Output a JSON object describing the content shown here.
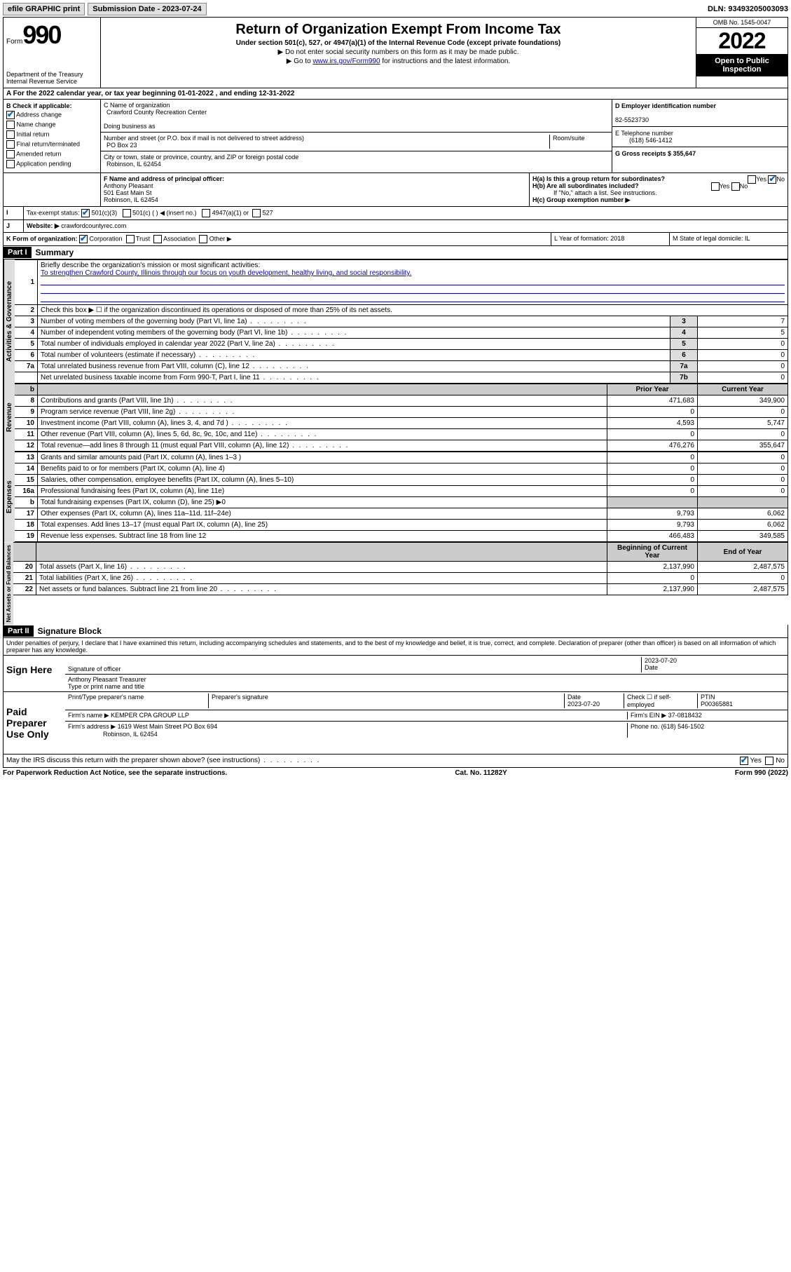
{
  "topbar": {
    "efile": "efile GRAPHIC print",
    "submission_label": "Submission Date - 2023-07-24",
    "dln_label": "DLN: 93493205003093"
  },
  "header": {
    "form_text": "Form",
    "form_num": "990",
    "dept": "Department of the Treasury",
    "irs": "Internal Revenue Service",
    "title": "Return of Organization Exempt From Income Tax",
    "subtitle": "Under section 501(c), 527, or 4947(a)(1) of the Internal Revenue Code (except private foundations)",
    "note1": "▶ Do not enter social security numbers on this form as it may be made public.",
    "note2_pre": "▶ Go to ",
    "note2_link": "www.irs.gov/Form990",
    "note2_post": " for instructions and the latest information.",
    "omb": "OMB No. 1545-0047",
    "year": "2022",
    "open": "Open to Public Inspection"
  },
  "rowA": {
    "text": "A For the 2022 calendar year, or tax year beginning 01-01-2022    , and ending 12-31-2022"
  },
  "colB": {
    "title": "B Check if applicable:",
    "items": [
      "Address change",
      "Name change",
      "Initial return",
      "Final return/terminated",
      "Amended return",
      "Application pending"
    ],
    "checked_idx": 0
  },
  "colC": {
    "name_lbl": "C Name of organization",
    "name": "Crawford County Recreation Center",
    "dba_lbl": "Doing business as",
    "addr_lbl": "Number and street (or P.O. box if mail is not delivered to street address)",
    "room_lbl": "Room/suite",
    "addr": "PO Box 23",
    "city_lbl": "City or town, state or province, country, and ZIP or foreign postal code",
    "city": "Robinson, IL  62454"
  },
  "colD": {
    "ein_lbl": "D Employer identification number",
    "ein": "82-5523730",
    "phone_lbl": "E Telephone number",
    "phone": "(618) 546-1412",
    "gross_lbl": "G Gross receipts $ 355,647"
  },
  "rowF": {
    "f_lbl": "F Name and address of principal officer:",
    "f_name": "Anthony Pleasant",
    "f_addr1": "501 East Main St",
    "f_addr2": "Robinson, IL  62454",
    "ha": "H(a)  Is this a group return for subordinates?",
    "hb": "H(b)  Are all subordinates included?",
    "hb_note": "If \"No,\" attach a list. See instructions.",
    "hc": "H(c)  Group exemption number ▶",
    "yes": "Yes",
    "no": "No"
  },
  "rowI": {
    "lbl": "Tax-exempt status:",
    "opts": [
      "501(c)(3)",
      "501(c) (  ) ◀ (insert no.)",
      "4947(a)(1) or",
      "527"
    ]
  },
  "rowJ": {
    "lbl": "Website: ▶",
    "val": "crawfordcountyrec.com"
  },
  "rowK": {
    "lbl": "K Form of organization:",
    "opts": [
      "Corporation",
      "Trust",
      "Association",
      "Other ▶"
    ],
    "L": "L Year of formation: 2018",
    "M": "M State of legal domicile: IL"
  },
  "part1": {
    "hdr": "Part I",
    "title": "Summary",
    "line1_lbl": "Briefly describe the organization's mission or most significant activities:",
    "line1_val": "To strengthen Crawford County, Illinois through our focus on youth development, healthy living, and social responsibility.",
    "line2": "Check this box ▶ ☐  if the organization discontinued its operations or disposed of more than 25% of its net assets.",
    "gov_lines": [
      {
        "n": "3",
        "d": "Number of voting members of the governing body (Part VI, line 1a)",
        "b": "3",
        "v": "7"
      },
      {
        "n": "4",
        "d": "Number of independent voting members of the governing body (Part VI, line 1b)",
        "b": "4",
        "v": "5"
      },
      {
        "n": "5",
        "d": "Total number of individuals employed in calendar year 2022 (Part V, line 2a)",
        "b": "5",
        "v": "0"
      },
      {
        "n": "6",
        "d": "Total number of volunteers (estimate if necessary)",
        "b": "6",
        "v": "0"
      },
      {
        "n": "7a",
        "d": "Total unrelated business revenue from Part VIII, column (C), line 12",
        "b": "7a",
        "v": "0"
      },
      {
        "n": "",
        "d": "Net unrelated business taxable income from Form 990-T, Part I, line 11",
        "b": "7b",
        "v": "0"
      }
    ],
    "prior": "Prior Year",
    "current": "Current Year",
    "rev_lines": [
      {
        "n": "8",
        "d": "Contributions and grants (Part VIII, line 1h)",
        "p": "471,683",
        "c": "349,900"
      },
      {
        "n": "9",
        "d": "Program service revenue (Part VIII, line 2g)",
        "p": "0",
        "c": "0"
      },
      {
        "n": "10",
        "d": "Investment income (Part VIII, column (A), lines 3, 4, and 7d )",
        "p": "4,593",
        "c": "5,747"
      },
      {
        "n": "11",
        "d": "Other revenue (Part VIII, column (A), lines 5, 6d, 8c, 9c, 10c, and 11e)",
        "p": "0",
        "c": "0"
      },
      {
        "n": "12",
        "d": "Total revenue—add lines 8 through 11 (must equal Part VIII, column (A), line 12)",
        "p": "476,276",
        "c": "355,647"
      }
    ],
    "exp_lines": [
      {
        "n": "13",
        "d": "Grants and similar amounts paid (Part IX, column (A), lines 1–3 )",
        "p": "0",
        "c": "0"
      },
      {
        "n": "14",
        "d": "Benefits paid to or for members (Part IX, column (A), line 4)",
        "p": "0",
        "c": "0"
      },
      {
        "n": "15",
        "d": "Salaries, other compensation, employee benefits (Part IX, column (A), lines 5–10)",
        "p": "0",
        "c": "0"
      },
      {
        "n": "16a",
        "d": "Professional fundraising fees (Part IX, column (A), line 11e)",
        "p": "0",
        "c": "0"
      },
      {
        "n": "b",
        "d": "Total fundraising expenses (Part IX, column (D), line 25) ▶0",
        "p": "",
        "c": "",
        "gray": true
      },
      {
        "n": "17",
        "d": "Other expenses (Part IX, column (A), lines 11a–11d, 11f–24e)",
        "p": "9,793",
        "c": "6,062"
      },
      {
        "n": "18",
        "d": "Total expenses. Add lines 13–17 (must equal Part IX, column (A), line 25)",
        "p": "9,793",
        "c": "6,062"
      },
      {
        "n": "19",
        "d": "Revenue less expenses. Subtract line 18 from line 12",
        "p": "466,483",
        "c": "349,585"
      }
    ],
    "begin": "Beginning of Current Year",
    "end": "End of Year",
    "net_lines": [
      {
        "n": "20",
        "d": "Total assets (Part X, line 16)",
        "p": "2,137,990",
        "c": "2,487,575"
      },
      {
        "n": "21",
        "d": "Total liabilities (Part X, line 26)",
        "p": "0",
        "c": "0"
      },
      {
        "n": "22",
        "d": "Net assets or fund balances. Subtract line 21 from line 20",
        "p": "2,137,990",
        "c": "2,487,575"
      }
    ],
    "tabs": {
      "gov": "Activities & Governance",
      "rev": "Revenue",
      "exp": "Expenses",
      "net": "Net Assets or Fund Balances"
    }
  },
  "part2": {
    "hdr": "Part II",
    "title": "Signature Block",
    "penalty": "Under penalties of perjury, I declare that I have examined this return, including accompanying schedules and statements, and to the best of my knowledge and belief, it is true, correct, and complete. Declaration of preparer (other than officer) is based on all information of which preparer has any knowledge.",
    "sign": "Sign Here",
    "sig_officer": "Signature of officer",
    "date": "Date",
    "date_val": "2023-07-20",
    "name_title": "Anthony Pleasant Treasurer",
    "name_title_lbl": "Type or print name and title",
    "paid": "Paid Preparer Use Only",
    "prep_name_lbl": "Print/Type preparer's name",
    "prep_sig_lbl": "Preparer's signature",
    "prep_date": "2023-07-20",
    "check_self": "Check ☐ if self-employed",
    "ptin_lbl": "PTIN",
    "ptin": "P00365881",
    "firm_name_lbl": "Firm's name   ▶",
    "firm_name": "KEMPER CPA GROUP LLP",
    "firm_ein_lbl": "Firm's EIN ▶",
    "firm_ein": "37-0818432",
    "firm_addr_lbl": "Firm's address ▶",
    "firm_addr": "1619 West Main Street PO Box 694",
    "firm_city": "Robinson, IL  62454",
    "firm_phone_lbl": "Phone no.",
    "firm_phone": "(618) 546-1502",
    "discuss": "May the IRS discuss this return with the preparer shown above? (see instructions)"
  },
  "footer": {
    "left": "For Paperwork Reduction Act Notice, see the separate instructions.",
    "mid": "Cat. No. 11282Y",
    "right": "Form 990 (2022)"
  }
}
